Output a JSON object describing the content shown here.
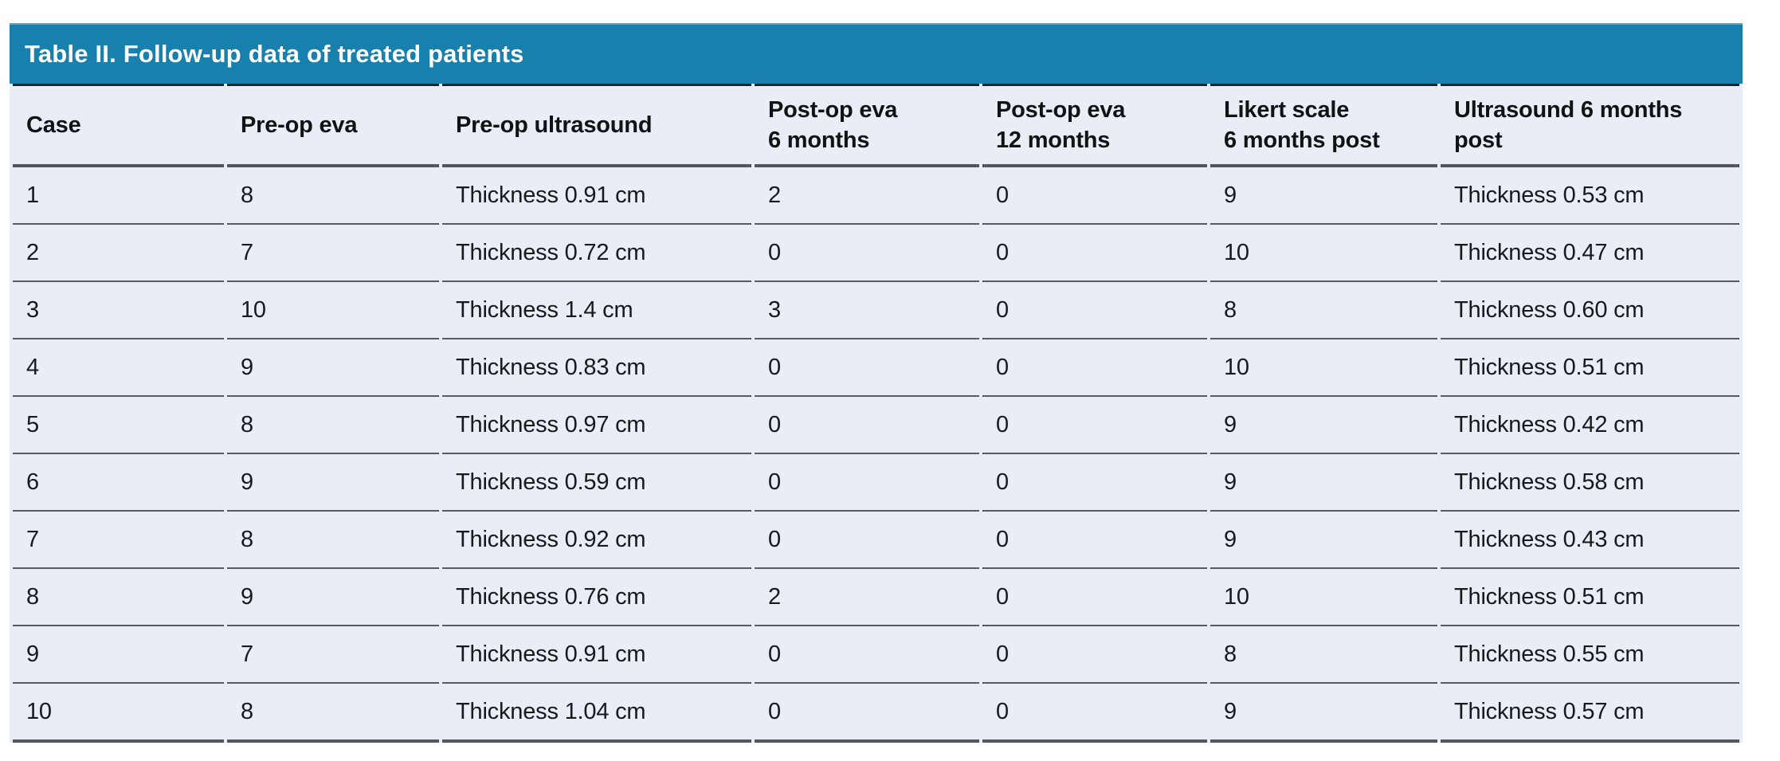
{
  "table": {
    "title": "Table II. Follow-up data of treated patients",
    "columns": [
      "Case",
      "Pre-op eva",
      "Pre-op ultrasound",
      "Post-op eva\n6 months",
      "Post-op eva\n12 months",
      "Likert scale\n6 months post",
      "Ultrasound 6 months\npost"
    ],
    "rows": [
      [
        "1",
        "8",
        "Thickness 0.91 cm",
        "2",
        "0",
        "9",
        "Thickness 0.53 cm"
      ],
      [
        "2",
        "7",
        "Thickness 0.72 cm",
        "0",
        "0",
        "10",
        "Thickness 0.47 cm"
      ],
      [
        "3",
        "10",
        "Thickness 1.4 cm",
        "3",
        "0",
        "8",
        "Thickness 0.60 cm"
      ],
      [
        "4",
        "9",
        "Thickness 0.83 cm",
        "0",
        "0",
        "10",
        "Thickness 0.51 cm"
      ],
      [
        "5",
        "8",
        "Thickness 0.97 cm",
        "0",
        "0",
        "9",
        "Thickness 0.42 cm"
      ],
      [
        "6",
        "9",
        "Thickness 0.59 cm",
        "0",
        "0",
        "9",
        "Thickness 0.58 cm"
      ],
      [
        "7",
        "8",
        "Thickness 0.92 cm",
        "0",
        "0",
        "9",
        "Thickness 0.43 cm"
      ],
      [
        "8",
        "9",
        "Thickness 0.76 cm",
        "2",
        "0",
        "10",
        "Thickness 0.51 cm"
      ],
      [
        "9",
        "7",
        "Thickness 0.91 cm",
        "0",
        "0",
        "8",
        "Thickness 0.55 cm"
      ],
      [
        "10",
        "8",
        "Thickness 1.04 cm",
        "0",
        "0",
        "9",
        "Thickness 0.57 cm"
      ]
    ],
    "colors": {
      "title_bar_background": "#1780ac",
      "title_text": "#ffffff",
      "row_background": "#e9edf6",
      "title_underline": "#16222c",
      "separator_line": "#54585e",
      "body_text": "#17191b"
    }
  }
}
